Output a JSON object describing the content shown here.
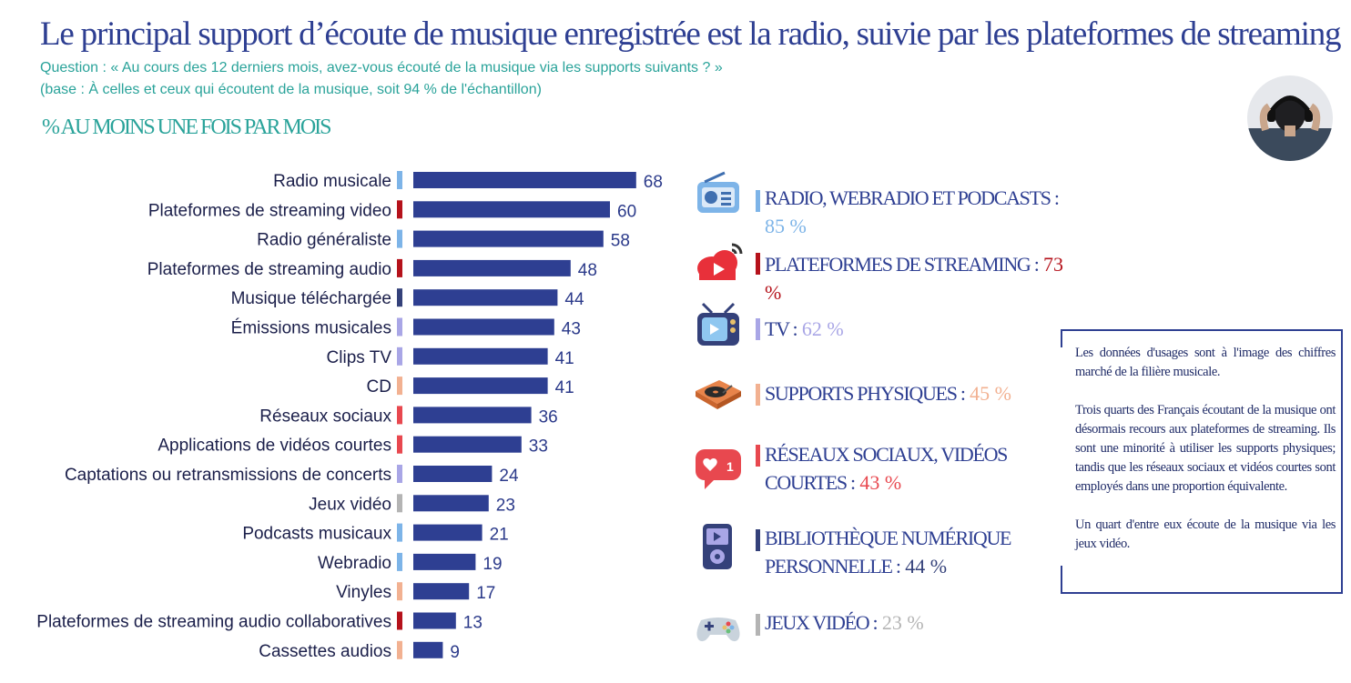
{
  "header": {
    "title": "Le principal support d’écoute de musique enregistrée est la radio, suivie par les plateformes de streaming",
    "question": "Question : « Au cours des 12 derniers mois, avez-vous écouté de la musique via les supports suivants ? »",
    "base": "(base : À celles et ceux qui écoutent de la musique, soit 94 % de l'échantillon)",
    "section": "% AU MOINS UNE FOIS PAR MOIS"
  },
  "chart_data": {
    "type": "bar",
    "orientation": "horizontal",
    "categories": [
      "Radio musicale",
      "Plateformes de streaming video",
      "Radio généraliste",
      "Plateformes de streaming audio",
      "Musique téléchargée",
      "Émissions musicales",
      "Clips TV",
      "CD",
      "Réseaux sociaux",
      "Applications de vidéos courtes",
      "Captations ou retransmissions de concerts",
      "Jeux vidéo",
      "Podcasts musicaux",
      "Webradio",
      "Vinyles",
      "Plateformes de streaming audio collaboratives",
      "Cassettes audios"
    ],
    "values": [
      68,
      60,
      58,
      48,
      44,
      43,
      41,
      41,
      36,
      33,
      24,
      23,
      21,
      19,
      17,
      13,
      9
    ],
    "category_colors": [
      "#7db4e8",
      "#b5121b",
      "#7db4e8",
      "#b5121b",
      "#34417a",
      "#a9a6e6",
      "#a9a6e6",
      "#f2b191",
      "#e8484f",
      "#e8484f",
      "#a9a6e6",
      "#b4b4b4",
      "#7db4e8",
      "#7db4e8",
      "#f2b191",
      "#b5121b",
      "#f2b191"
    ],
    "bar_color": "#2e3f92",
    "xlim": [
      0,
      70
    ]
  },
  "legend": [
    {
      "icon": "radio-icon",
      "label": "RADIO, WEBRADIO ET PODCASTS :",
      "value": "85 %",
      "color": "#7db4e8"
    },
    {
      "icon": "cloud-streaming-icon",
      "label": "PLATEFORMES DE STREAMING :",
      "value": "73 %",
      "color": "#b5121b"
    },
    {
      "icon": "tv-icon",
      "label": "TV :",
      "value": "62 %",
      "color": "#a9a6e6"
    },
    {
      "icon": "turntable-icon",
      "label": "SUPPORTS PHYSIQUES :",
      "value": "45 %",
      "color": "#f2b191"
    },
    {
      "icon": "social-heart-icon",
      "label": "RÉSEAUX SOCIAUX, VIDÉOS COURTES :",
      "value": "43 %",
      "color": "#e8484f"
    },
    {
      "icon": "media-player-icon",
      "label": "BIBLIOTHÈQUE NUMÉRIQUE PERSONNELLE :",
      "value": "44 %",
      "color": "#34417a"
    },
    {
      "icon": "gamepad-icon",
      "label": "JEUX VIDÉO :",
      "value": "23 %",
      "color": "#b4b4b4"
    }
  ],
  "info_box": {
    "p1": "Les données d'usages sont à l'image des chiffres marché de la filière musicale.",
    "p2": "Trois quarts des Français écoutant de la musique ont désormais recours aux plateformes de streaming. Ils sont une minorité à utiliser les supports physiques; tandis que les réseaux sociaux et vidéos courtes sont employés dans une proportion équivalente.",
    "p3": "Un quart d'entre eux écoute de la musique via les jeux vidéo."
  }
}
